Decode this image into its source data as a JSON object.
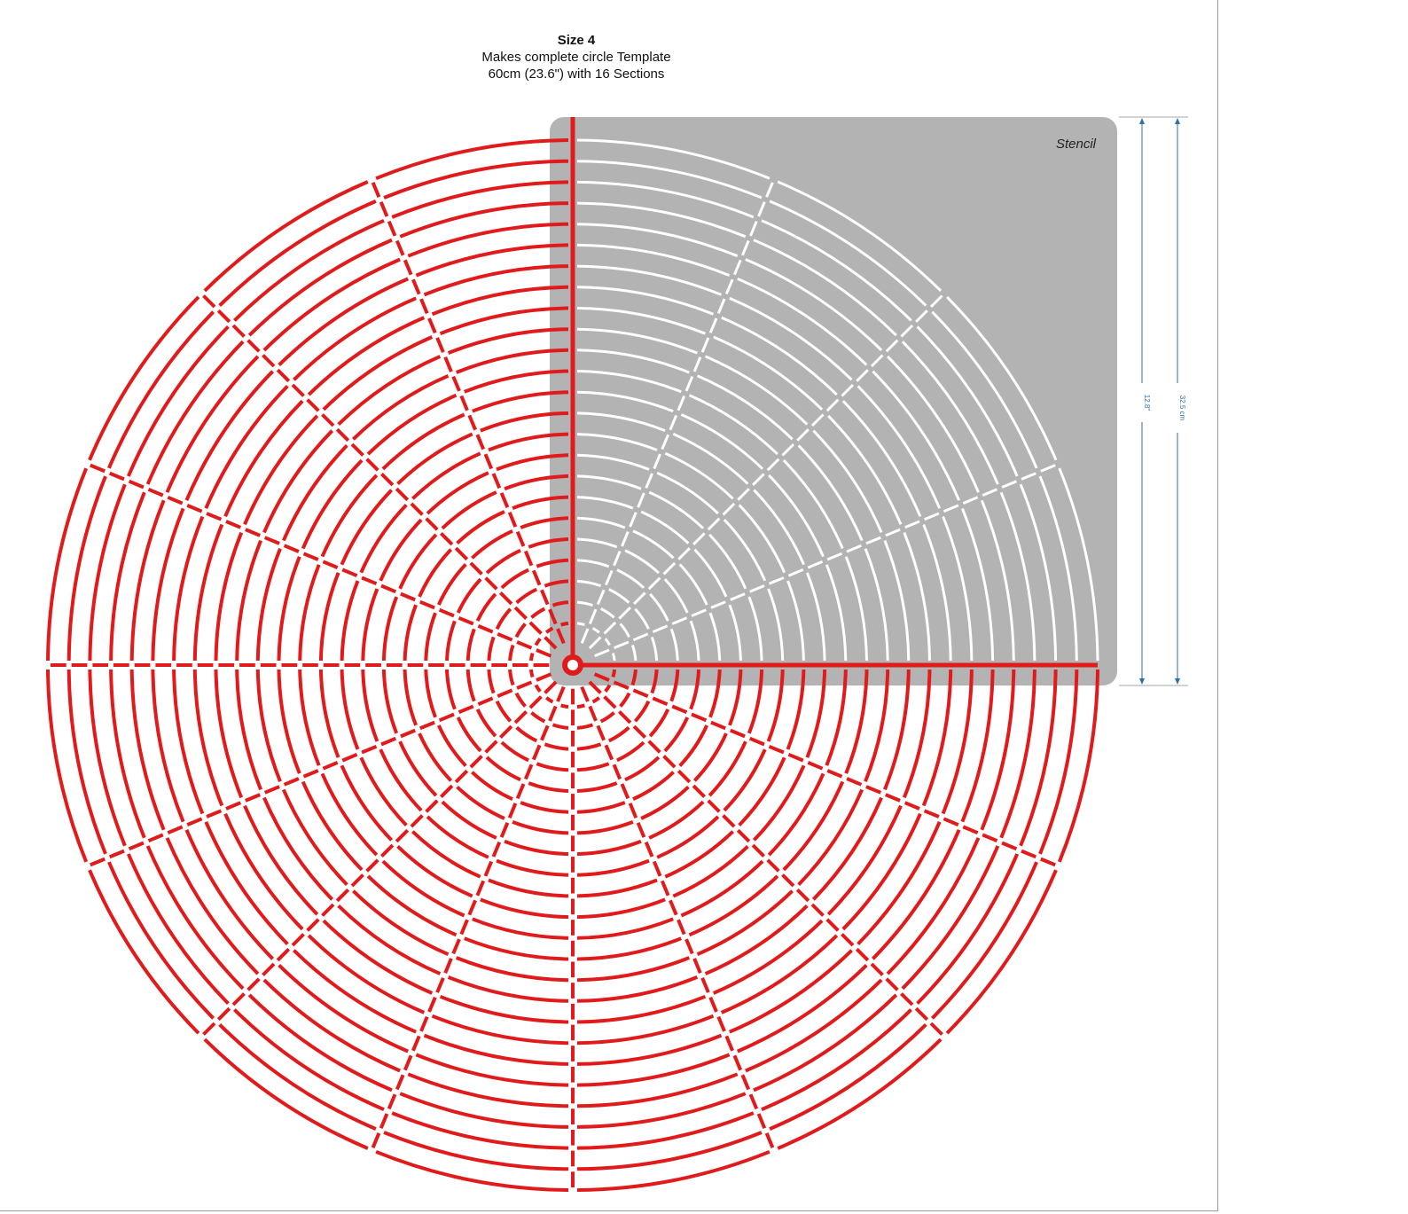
{
  "heading": {
    "title": "Size 4",
    "line1": "Makes complete circle Template",
    "line2": "60cm (23.6\") with 16 Sections"
  },
  "stencil": {
    "label": "Stencil",
    "fill_color": "#b3b3b3",
    "cut_color": "#ffffff"
  },
  "template": {
    "line_color": "#e11b1b",
    "sections": 16,
    "rings": 25
  },
  "dimensions": {
    "inner": "12.8\"",
    "outer": "32.5 cm",
    "color": "#2f6fa8"
  }
}
